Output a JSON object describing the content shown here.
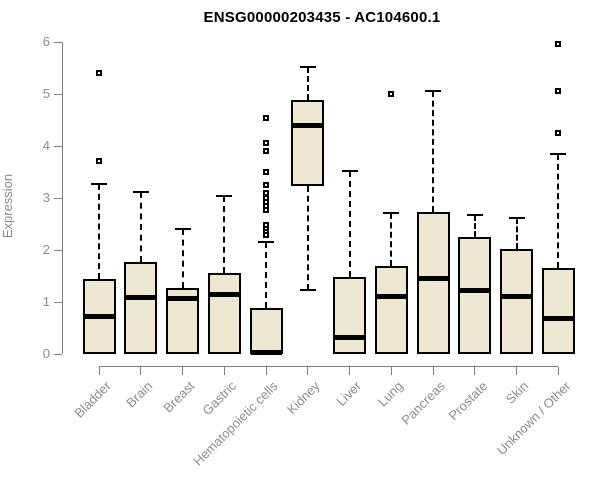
{
  "title": "ENSG00000203435 - AC104600.1",
  "chart_data": {
    "type": "boxplot",
    "title": "ENSG00000203435 - AC104600.1",
    "xlabel": "",
    "ylabel": "Expression",
    "ylim": [
      0,
      6
    ],
    "yticks": [
      0,
      1,
      2,
      3,
      4,
      5,
      6
    ],
    "grid": false,
    "legend": "none",
    "categories": [
      "Bladder",
      "Brain",
      "Breast",
      "Gastric",
      "Hematopoietic cells",
      "Kidney",
      "Liver",
      "Lung",
      "Pancreas",
      "Prostate",
      "Skin",
      "Unknown / Other"
    ],
    "boxes": [
      {
        "label": "Bladder",
        "q1": 0,
        "median": 0.73,
        "q3": 1.44,
        "whisker_low": 0,
        "whisker_high": 3.28,
        "outliers": [
          3.72,
          5.4
        ]
      },
      {
        "label": "Brain",
        "q1": 0,
        "median": 1.08,
        "q3": 1.77,
        "whisker_low": 0,
        "whisker_high": 3.12,
        "outliers": []
      },
      {
        "label": "Breast",
        "q1": 0,
        "median": 1.07,
        "q3": 1.27,
        "whisker_low": 0,
        "whisker_high": 2.41,
        "outliers": []
      },
      {
        "label": "Gastric",
        "q1": 0,
        "median": 1.15,
        "q3": 1.56,
        "whisker_low": 0,
        "whisker_high": 3.05,
        "outliers": []
      },
      {
        "label": "Hematopoietic cells",
        "q1": 0,
        "median": 0.03,
        "q3": 0.88,
        "whisker_low": 0,
        "whisker_high": 2.16,
        "outliers": [
          2.29,
          2.36,
          2.42,
          2.48,
          2.77,
          2.84,
          2.93,
          3.01,
          3.09,
          3.25,
          3.51,
          3.91,
          4.06,
          4.54
        ]
      },
      {
        "label": "Kidney",
        "q1": 3.24,
        "median": 4.39,
        "q3": 4.89,
        "whisker_low": 1.23,
        "whisker_high": 5.52,
        "outliers": []
      },
      {
        "label": "Liver",
        "q1": 0,
        "median": 0.31,
        "q3": 1.49,
        "whisker_low": 0,
        "whisker_high": 3.53,
        "outliers": []
      },
      {
        "label": "Lung",
        "q1": 0,
        "median": 1.1,
        "q3": 1.69,
        "whisker_low": 0,
        "whisker_high": 2.71,
        "outliers": [
          5.0
        ]
      },
      {
        "label": "Pancreas",
        "q1": 0,
        "median": 1.46,
        "q3": 2.74,
        "whisker_low": 0,
        "whisker_high": 5.07,
        "outliers": []
      },
      {
        "label": "Prostate",
        "q1": 0,
        "median": 1.23,
        "q3": 2.26,
        "whisker_low": 0,
        "whisker_high": 2.67,
        "outliers": []
      },
      {
        "label": "Skin",
        "q1": 0,
        "median": 1.1,
        "q3": 2.02,
        "whisker_low": 0,
        "whisker_high": 2.62,
        "outliers": []
      },
      {
        "label": "Unknown / Other",
        "q1": 0,
        "median": 0.69,
        "q3": 1.65,
        "whisker_low": 0,
        "whisker_high": 3.85,
        "outliers": [
          4.25,
          5.07,
          5.97
        ]
      }
    ],
    "colors": {
      "box_fill": "#EEE8D1",
      "box_border": "#000000",
      "median": "#000000",
      "whisker": "#000000",
      "axis": "#7f7f7f",
      "tick_text": "#8c8c8c",
      "title_text": "#000000",
      "background": "#ffffff"
    }
  }
}
